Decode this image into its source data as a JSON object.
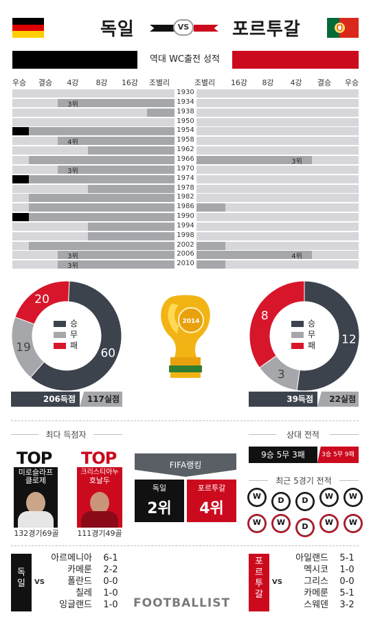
{
  "header": {
    "team_left": "독일",
    "team_right": "포르투갈",
    "vs": "VS"
  },
  "colors": {
    "germany": "#000000",
    "portugal": "#cc0a1e",
    "dark": "#3c434d",
    "gray": "#a6a7ab",
    "red": "#d8162b"
  },
  "section_title": "역대 WC출전 성적",
  "stages_left": [
    "우승",
    "결승",
    "4강",
    "8강",
    "16강",
    "조별리그"
  ],
  "stages_right": [
    "조별리그",
    "16강",
    "8강",
    "4강",
    "결승",
    "우승"
  ],
  "history": [
    {
      "year": "1930",
      "de": 0,
      "de_label": "",
      "pt": 0,
      "pt_label": ""
    },
    {
      "year": "1934",
      "de": 4,
      "de_label": "3위",
      "pt": 0,
      "pt_label": ""
    },
    {
      "year": "1938",
      "de": 1,
      "de_label": "",
      "pt": 0,
      "pt_label": ""
    },
    {
      "year": "1950",
      "de": 0,
      "de_label": "",
      "pt": 0,
      "pt_label": ""
    },
    {
      "year": "1954",
      "de": 6,
      "de_label": "",
      "pt": 0,
      "pt_label": ""
    },
    {
      "year": "1958",
      "de": 4,
      "de_label": "4위",
      "pt": 0,
      "pt_label": ""
    },
    {
      "year": "1962",
      "de": 3,
      "de_label": "",
      "pt": 0,
      "pt_label": ""
    },
    {
      "year": "1966",
      "de": 5,
      "de_label": "",
      "pt": 4,
      "pt_label": "3위"
    },
    {
      "year": "1970",
      "de": 4,
      "de_label": "3위",
      "pt": 0,
      "pt_label": ""
    },
    {
      "year": "1974",
      "de": 6,
      "de_label": "",
      "pt": 0,
      "pt_label": ""
    },
    {
      "year": "1978",
      "de": 3,
      "de_label": "",
      "pt": 0,
      "pt_label": ""
    },
    {
      "year": "1982",
      "de": 5,
      "de_label": "",
      "pt": 0,
      "pt_label": ""
    },
    {
      "year": "1986",
      "de": 5,
      "de_label": "",
      "pt": 1,
      "pt_label": ""
    },
    {
      "year": "1990",
      "de": 6,
      "de_label": "",
      "pt": 0,
      "pt_label": ""
    },
    {
      "year": "1994",
      "de": 3,
      "de_label": "",
      "pt": 0,
      "pt_label": ""
    },
    {
      "year": "1998",
      "de": 3,
      "de_label": "",
      "pt": 0,
      "pt_label": ""
    },
    {
      "year": "2002",
      "de": 5,
      "de_label": "",
      "pt": 1,
      "pt_label": ""
    },
    {
      "year": "2006",
      "de": 4,
      "de_label": "3위",
      "pt": 4,
      "pt_label": "4위"
    },
    {
      "year": "2010",
      "de": 4,
      "de_label": "3위",
      "pt": 1,
      "pt_label": ""
    }
  ],
  "record_de": {
    "win": 60,
    "draw": 19,
    "loss": 20,
    "goals_for": "206득점",
    "goals_against": "117실점"
  },
  "record_pt": {
    "win": 12,
    "draw": 3,
    "loss": 8,
    "goals_for": "39득점",
    "goals_against": "22실점"
  },
  "legend": {
    "win": "승",
    "draw": "무",
    "loss": "패"
  },
  "top_scorers": {
    "title": "최다 득점자",
    "top_word": "TOP",
    "de_name_1": "미로슬라프",
    "de_name_2": "클로제",
    "de_stats": "132경기69골",
    "pt_name_1": "크리스티아누",
    "pt_name_2": "호날두",
    "pt_stats": "111경기49골"
  },
  "fifa": {
    "title": "FIFA랭킹",
    "de_label": "독일",
    "pt_label": "포르투갈",
    "de_rank": "2위",
    "pt_rank": "4위"
  },
  "h2h": {
    "title": "상대 전적",
    "de_record": "9승 5무 3패",
    "pt_record": "3승 5무 9패"
  },
  "recent": {
    "title": "최근 5경기 전적",
    "de": [
      "W",
      "D",
      "D",
      "W",
      "W"
    ],
    "pt": [
      "W",
      "W",
      "D",
      "W",
      "W"
    ]
  },
  "recent_matches_de": {
    "label": "독일",
    "vs": "VS",
    "rows": [
      {
        "team": "아르메니아",
        "score": "6-1"
      },
      {
        "team": "카메룬",
        "score": "2-2"
      },
      {
        "team": "폴란드",
        "score": "0-0"
      },
      {
        "team": "칠레",
        "score": "1-0"
      },
      {
        "team": "잉글랜드",
        "score": "1-0"
      }
    ]
  },
  "recent_matches_pt": {
    "label": "포르투갈",
    "vs": "VS",
    "rows": [
      {
        "team": "아일랜드",
        "score": "5-1"
      },
      {
        "team": "멕시코",
        "score": "1-0"
      },
      {
        "team": "그리스",
        "score": "0-0"
      },
      {
        "team": "카메룬",
        "score": "5-1"
      },
      {
        "team": "스웨덴",
        "score": "3-2"
      }
    ]
  },
  "footer": {
    "brand": "FOOTBALLIST"
  }
}
